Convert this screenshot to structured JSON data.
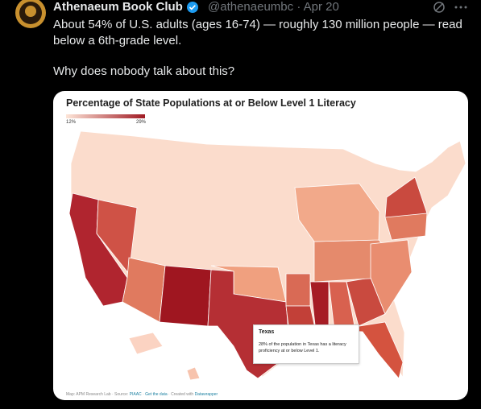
{
  "post": {
    "author": "Athenaeum Book Club",
    "handle": "@athenaeumbc",
    "separator": "·",
    "date": "Apr 20",
    "text": "About 54% of U.S. adults (ages 16-74) — roughly 130 million people — read below a 6th-grade level.",
    "text2": "Why does nobody talk about this?"
  },
  "map": {
    "title": "Percentage of State Populations at or Below Level 1 Literacy",
    "legend": {
      "min": "12%",
      "max": "29%"
    },
    "tooltip": {
      "title": "Texas",
      "text": "28% of the population in Texas has a literacy proficiency at or below Level 1."
    },
    "footer": {
      "prefix": "Map: APM Research Lab · Source:",
      "source": "PIAAC",
      "sep": "·",
      "get_data": "Get the data",
      "created": "· Created with",
      "tool": "Datawrapper"
    }
  }
}
